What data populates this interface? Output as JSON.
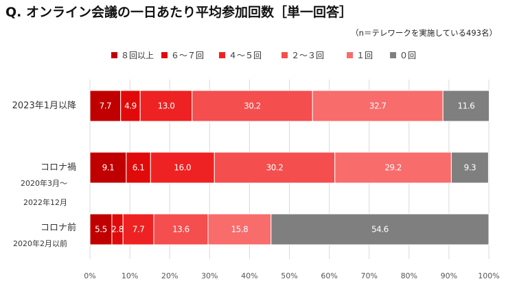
{
  "title": "Q. オンライン会議の一日あたり平均参加回数［単一回答］",
  "note": "（n＝テレワークを実施している493名）",
  "chart_data": {
    "type": "bar",
    "orientation": "horizontal",
    "stacked": true,
    "unit": "%",
    "xlim": [
      0,
      100
    ],
    "xticks": [
      "0%",
      "10%",
      "20%",
      "30%",
      "40%",
      "50%",
      "60%",
      "70%",
      "80%",
      "90%",
      "100%"
    ],
    "grid": true,
    "legend_position": "top",
    "categories": [
      {
        "label": "2023年1月以降",
        "sub": []
      },
      {
        "label": "コロナ禍",
        "sub": [
          "2020年3月〜",
          "2022年12月"
        ]
      },
      {
        "label": "コロナ前",
        "sub": [
          "2020年2月以前"
        ]
      }
    ],
    "series": [
      {
        "name": "８回以上",
        "color": "#C00000",
        "values": [
          7.7,
          9.1,
          5.5
        ]
      },
      {
        "name": "６～７回",
        "color": "#E00A0A",
        "values": [
          4.9,
          6.1,
          2.8
        ]
      },
      {
        "name": "４～５回",
        "color": "#EE2222",
        "values": [
          13.0,
          16.0,
          7.7
        ]
      },
      {
        "name": "２～３回",
        "color": "#F44E4E",
        "values": [
          30.2,
          30.2,
          13.6
        ]
      },
      {
        "name": "１回",
        "color": "#F86C6C",
        "values": [
          32.7,
          29.2,
          15.8
        ]
      },
      {
        "name": "０回",
        "color": "#7F7F7F",
        "values": [
          11.6,
          9.3,
          54.6
        ]
      }
    ]
  }
}
